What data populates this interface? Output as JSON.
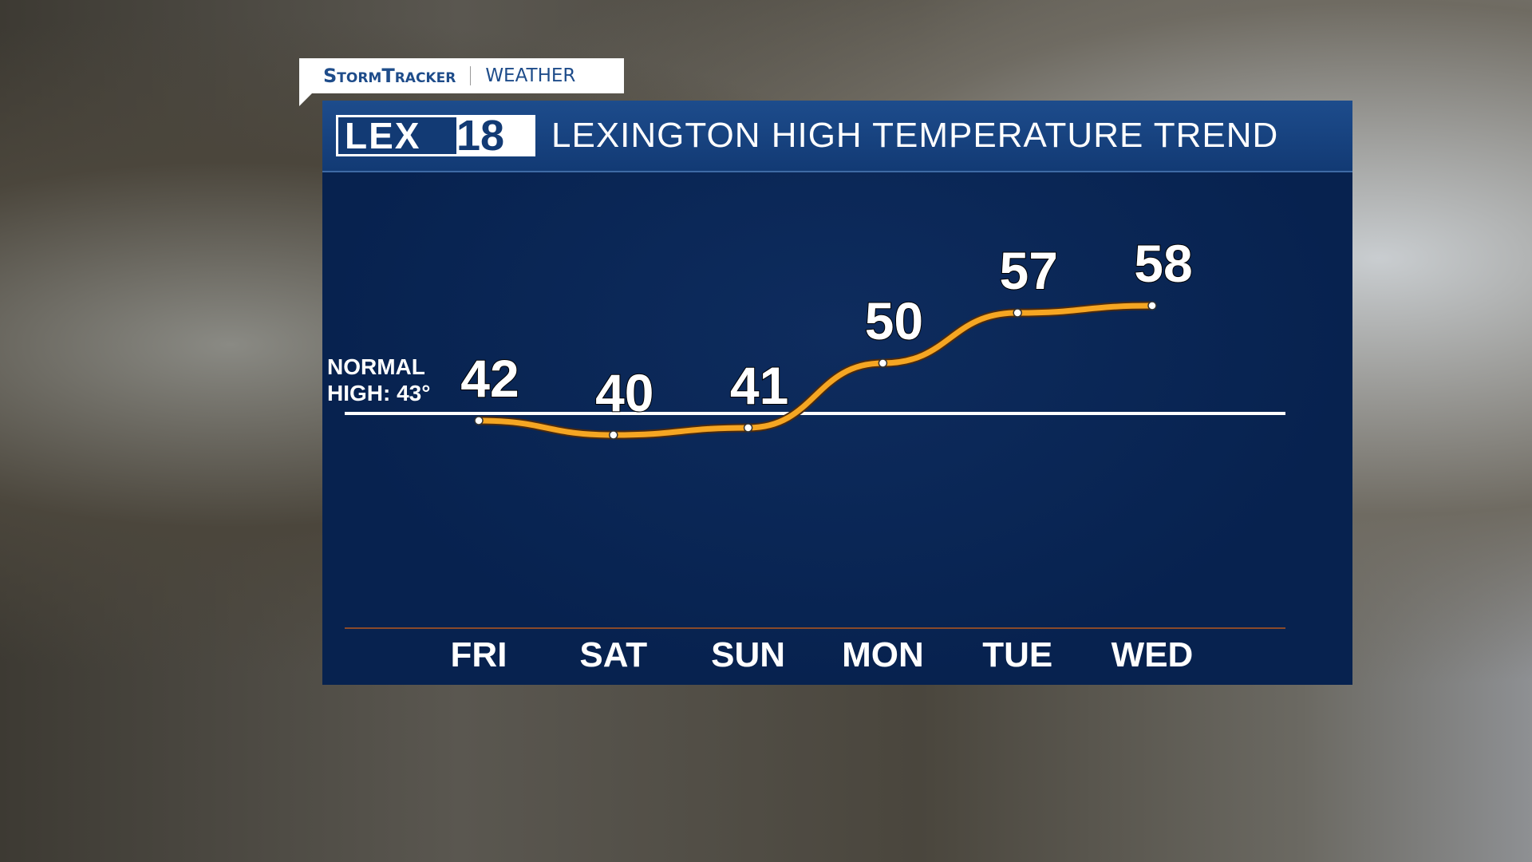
{
  "branding": {
    "tab_brand": "StormTracker",
    "tab_section": "WEATHER",
    "logo": "LEX18",
    "title": "LEXINGTON HIGH TEMPERATURE TREND"
  },
  "normal": {
    "label_line1": "NORMAL",
    "label_line2": "HIGH: 43°",
    "value": 43
  },
  "chart_data": {
    "type": "line",
    "title": "LEXINGTON HIGH TEMPERATURE TREND",
    "categories": [
      "FRI",
      "SAT",
      "SUN",
      "MON",
      "TUE",
      "WED"
    ],
    "values": [
      42,
      40,
      41,
      50,
      57,
      58
    ],
    "reference_line": 43,
    "line_color": "#f5a623",
    "grid": false
  }
}
